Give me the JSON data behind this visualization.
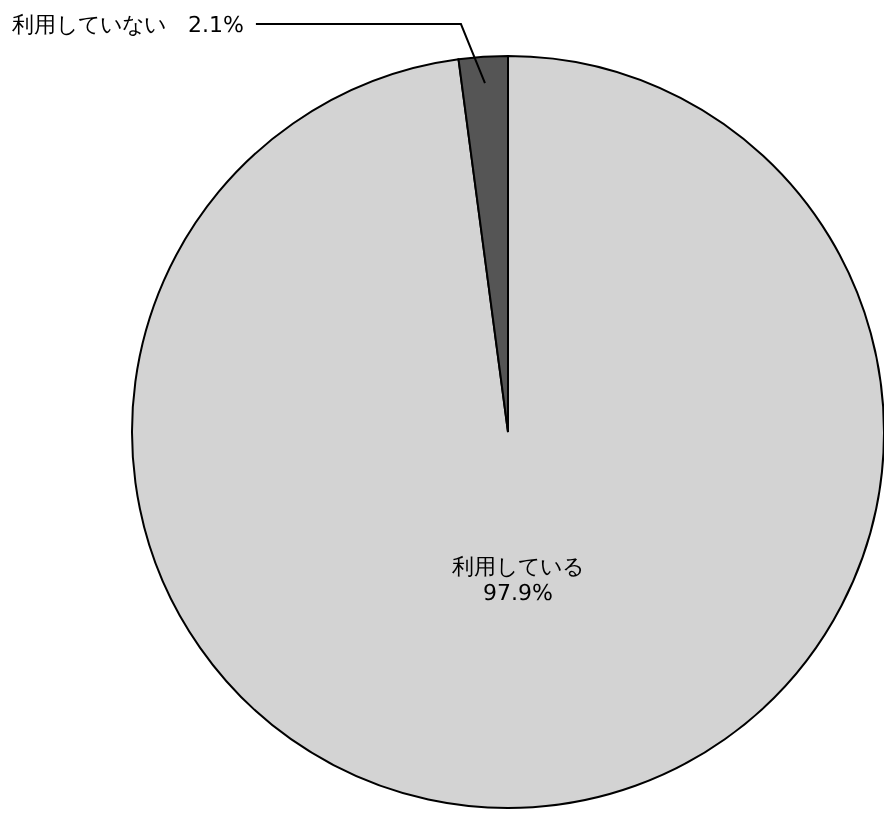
{
  "chart_data": {
    "type": "pie",
    "categories": [
      "利用している",
      "利用していない"
    ],
    "values": [
      97.9,
      2.1
    ],
    "colors": [
      "#d3d3d3",
      "#555555"
    ],
    "value_labels": [
      "97.9%",
      "2.1%"
    ]
  }
}
